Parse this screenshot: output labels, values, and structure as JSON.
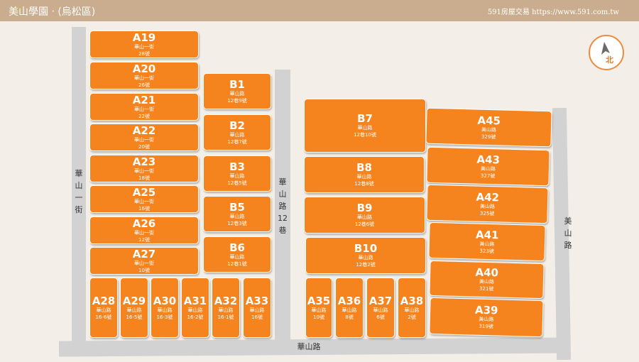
{
  "header": {
    "title": "美山學園 ‧ (烏松區)",
    "site": "591房屋交易 https://www.591.com.tw"
  },
  "compass": {
    "label": "北"
  },
  "roads": {
    "left_street": "華山一街",
    "middle_lane": "華山路12巷",
    "right_road": "美山路",
    "bottom_road": "華山路"
  },
  "lots": [
    {
      "code": "A19",
      "street": "華山一街",
      "number": "28號"
    },
    {
      "code": "A20",
      "street": "華山一街",
      "number": "26號"
    },
    {
      "code": "A21",
      "street": "華山一街",
      "number": "22號"
    },
    {
      "code": "A22",
      "street": "華山一街",
      "number": "20號"
    },
    {
      "code": "A23",
      "street": "華山一街",
      "number": "18號"
    },
    {
      "code": "A25",
      "street": "華山一街",
      "number": "16號"
    },
    {
      "code": "A26",
      "street": "華山一街",
      "number": "12號"
    },
    {
      "code": "A27",
      "street": "華山一街",
      "number": "10號"
    },
    {
      "code": "B1",
      "street": "華山路",
      "number": "12巷9號"
    },
    {
      "code": "B2",
      "street": "華山路",
      "number": "12巷7號"
    },
    {
      "code": "B3",
      "street": "華山路",
      "number": "12巷5號"
    },
    {
      "code": "B5",
      "street": "華山路",
      "number": "12巷3號"
    },
    {
      "code": "B6",
      "street": "華山路",
      "number": "12巷1號"
    },
    {
      "code": "A28",
      "street": "華山路",
      "number": "16-6號"
    },
    {
      "code": "A29",
      "street": "華山路",
      "number": "16-5號"
    },
    {
      "code": "A30",
      "street": "華山路",
      "number": "16-3號"
    },
    {
      "code": "A31",
      "street": "華山路",
      "number": "16-2號"
    },
    {
      "code": "A32",
      "street": "華山路",
      "number": "16-1號"
    },
    {
      "code": "A33",
      "street": "華山路",
      "number": "16號"
    },
    {
      "code": "B7",
      "street": "華山路",
      "number": "12巷10號"
    },
    {
      "code": "B8",
      "street": "華山路",
      "number": "12巷8號"
    },
    {
      "code": "B9",
      "street": "華山路",
      "number": "12巷6號"
    },
    {
      "code": "B10",
      "street": "華山路",
      "number": "12巷2號"
    },
    {
      "code": "A35",
      "street": "華山路",
      "number": "10號"
    },
    {
      "code": "A36",
      "street": "華山路",
      "number": "8號"
    },
    {
      "code": "A37",
      "street": "華山路",
      "number": "6號"
    },
    {
      "code": "A38",
      "street": "華山路",
      "number": "2號"
    },
    {
      "code": "A45",
      "street": "美山路",
      "number": "329號"
    },
    {
      "code": "A43",
      "street": "美山路",
      "number": "327號"
    },
    {
      "code": "A42",
      "street": "美山路",
      "number": "325號"
    },
    {
      "code": "A41",
      "street": "美山路",
      "number": "323號"
    },
    {
      "code": "A40",
      "street": "美山路",
      "number": "321號"
    },
    {
      "code": "A39",
      "street": "美山路",
      "number": "319號"
    }
  ]
}
